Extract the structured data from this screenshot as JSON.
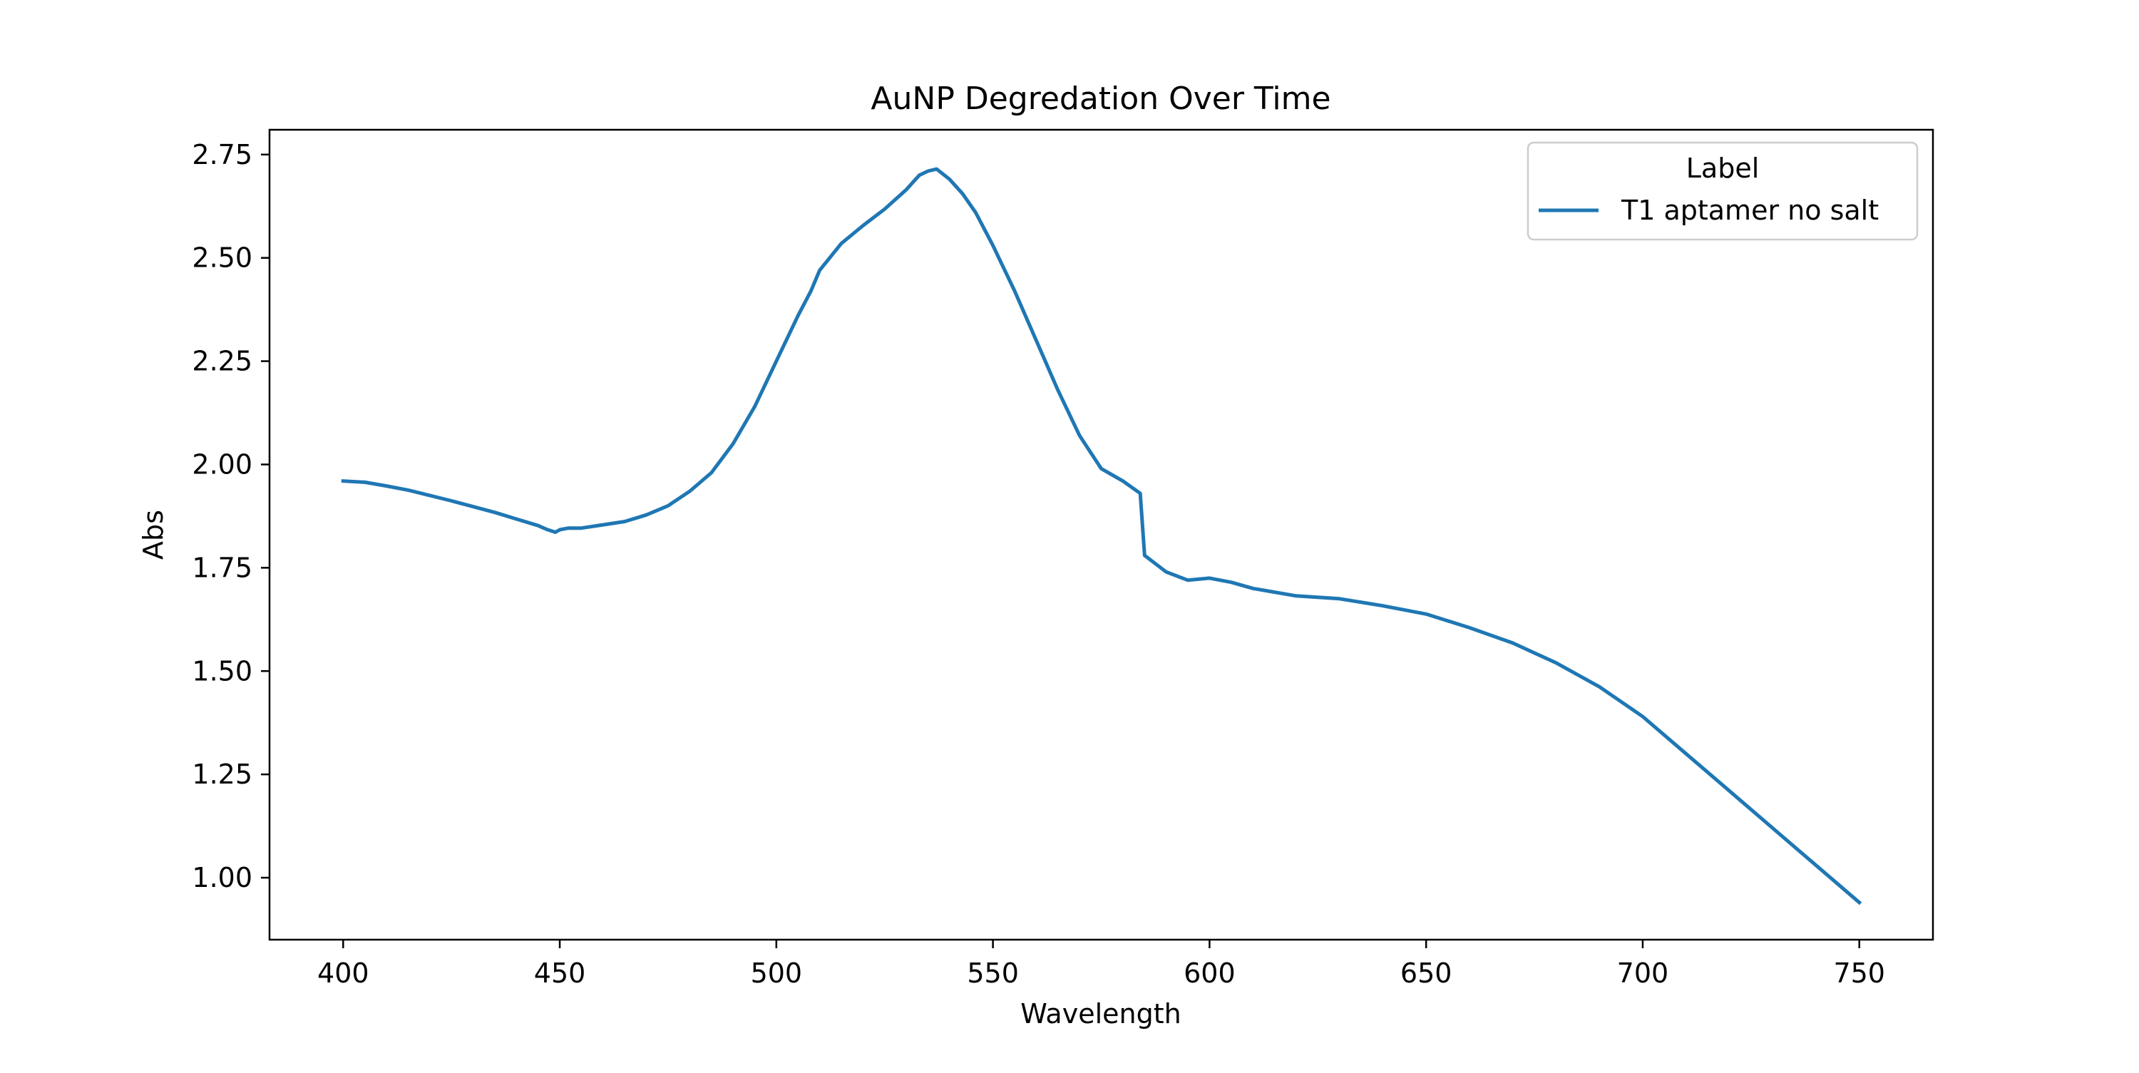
{
  "chart_data": {
    "type": "line",
    "title": "AuNP Degredation Over Time",
    "xlabel": "Wavelength",
    "ylabel": "Abs",
    "xlim": [
      383,
      767
    ],
    "ylim": [
      0.85,
      2.81
    ],
    "xticks": [
      400,
      450,
      500,
      550,
      600,
      650,
      700,
      750
    ],
    "yticks": [
      1.0,
      1.25,
      1.5,
      1.75,
      2.0,
      2.25,
      2.5,
      2.75
    ],
    "xtick_labels": [
      "400",
      "450",
      "500",
      "550",
      "600",
      "650",
      "700",
      "750"
    ],
    "ytick_labels": [
      "1.00",
      "1.25",
      "1.50",
      "1.75",
      "2.00",
      "2.25",
      "2.50",
      "2.75"
    ],
    "grid": false,
    "legend": {
      "title": "Label",
      "placement": "top-right"
    },
    "series": [
      {
        "name": "T1 aptamer no salt",
        "color": "#1f77b4",
        "points": [
          [
            400,
            1.96
          ],
          [
            405,
            1.957
          ],
          [
            410,
            1.948
          ],
          [
            415,
            1.938
          ],
          [
            420,
            1.925
          ],
          [
            425,
            1.912
          ],
          [
            430,
            1.898
          ],
          [
            435,
            1.884
          ],
          [
            440,
            1.868
          ],
          [
            445,
            1.852
          ],
          [
            447,
            1.843
          ],
          [
            449,
            1.836
          ],
          [
            450,
            1.842
          ],
          [
            452,
            1.846
          ],
          [
            455,
            1.846
          ],
          [
            460,
            1.854
          ],
          [
            465,
            1.862
          ],
          [
            470,
            1.878
          ],
          [
            475,
            1.9
          ],
          [
            480,
            1.935
          ],
          [
            485,
            1.98
          ],
          [
            490,
            2.05
          ],
          [
            495,
            2.14
          ],
          [
            500,
            2.25
          ],
          [
            505,
            2.36
          ],
          [
            508,
            2.42
          ],
          [
            510,
            2.47
          ],
          [
            515,
            2.535
          ],
          [
            520,
            2.578
          ],
          [
            525,
            2.618
          ],
          [
            530,
            2.665
          ],
          [
            533,
            2.7
          ],
          [
            535,
            2.71
          ],
          [
            537,
            2.715
          ],
          [
            540,
            2.69
          ],
          [
            543,
            2.655
          ],
          [
            546,
            2.61
          ],
          [
            550,
            2.53
          ],
          [
            555,
            2.42
          ],
          [
            560,
            2.3
          ],
          [
            565,
            2.18
          ],
          [
            570,
            2.07
          ],
          [
            575,
            1.99
          ],
          [
            580,
            1.96
          ],
          [
            584,
            1.93
          ],
          [
            585,
            1.78
          ],
          [
            590,
            1.74
          ],
          [
            595,
            1.72
          ],
          [
            600,
            1.725
          ],
          [
            605,
            1.715
          ],
          [
            610,
            1.7
          ],
          [
            620,
            1.682
          ],
          [
            630,
            1.675
          ],
          [
            640,
            1.658
          ],
          [
            650,
            1.638
          ],
          [
            660,
            1.605
          ],
          [
            670,
            1.568
          ],
          [
            680,
            1.52
          ],
          [
            690,
            1.462
          ],
          [
            700,
            1.39
          ],
          [
            710,
            1.3
          ],
          [
            720,
            1.21
          ],
          [
            730,
            1.12
          ],
          [
            740,
            1.03
          ],
          [
            750,
            0.94
          ]
        ]
      }
    ]
  }
}
